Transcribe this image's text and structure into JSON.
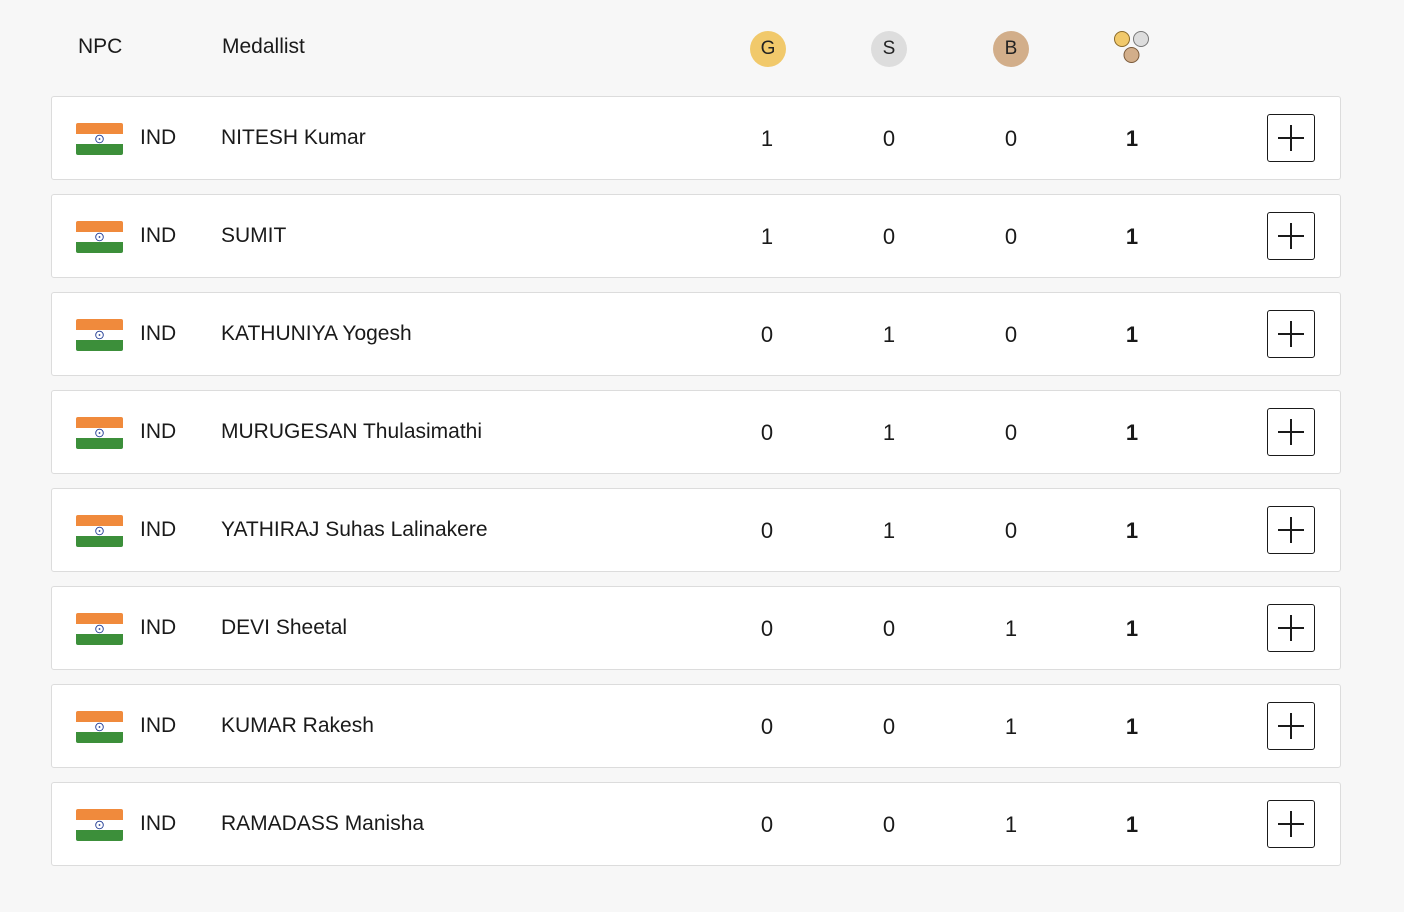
{
  "header": {
    "npc_label": "NPC",
    "medallist_label": "Medallist",
    "gold_label": "G",
    "silver_label": "S",
    "bronze_label": "B",
    "total_icon": "medals-total-icon"
  },
  "colors": {
    "gold": "#f1c96b",
    "silver": "#dddddd",
    "bronze": "#d2ae8a",
    "flag_saffron": "#f08a3c",
    "flag_white": "#ffffff",
    "flag_green": "#3c8f3a",
    "chakra": "#1f3a93"
  },
  "rows": [
    {
      "npc": "IND",
      "name": "NITESH Kumar",
      "gold": "1",
      "silver": "0",
      "bronze": "0",
      "total": "1"
    },
    {
      "npc": "IND",
      "name": "SUMIT",
      "gold": "1",
      "silver": "0",
      "bronze": "0",
      "total": "1"
    },
    {
      "npc": "IND",
      "name": "KATHUNIYA Yogesh",
      "gold": "0",
      "silver": "1",
      "bronze": "0",
      "total": "1"
    },
    {
      "npc": "IND",
      "name": "MURUGESAN Thulasimathi",
      "gold": "0",
      "silver": "1",
      "bronze": "0",
      "total": "1"
    },
    {
      "npc": "IND",
      "name": "YATHIRAJ Suhas Lalinakere",
      "gold": "0",
      "silver": "1",
      "bronze": "0",
      "total": "1"
    },
    {
      "npc": "IND",
      "name": "DEVI Sheetal",
      "gold": "0",
      "silver": "0",
      "bronze": "1",
      "total": "1"
    },
    {
      "npc": "IND",
      "name": "KUMAR Rakesh",
      "gold": "0",
      "silver": "0",
      "bronze": "1",
      "total": "1"
    },
    {
      "npc": "IND",
      "name": "RAMADASS Manisha",
      "gold": "0",
      "silver": "0",
      "bronze": "1",
      "total": "1"
    }
  ]
}
